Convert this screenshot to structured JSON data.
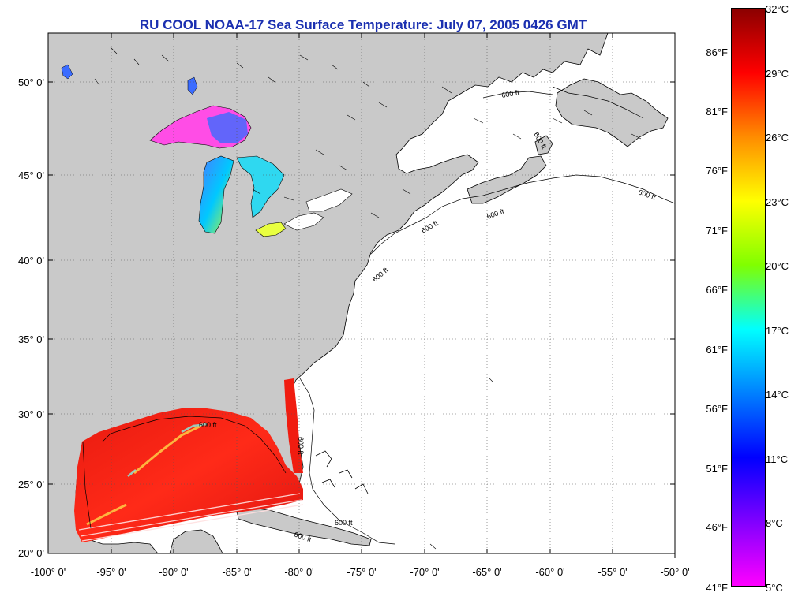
{
  "title": "RU COOL  NOAA-17  Sea Surface Temperature:  July 07, 2005 0426 GMT",
  "latitude_labels": [
    "50° 0'",
    "45° 0'",
    "40° 0'",
    "35° 0'",
    "30° 0'",
    "25° 0'",
    "20° 0'"
  ],
  "longitude_labels": [
    "-100° 0'",
    "-95° 0'",
    "-90° 0'",
    "-85° 0'",
    "-80° 0'",
    "-75° 0'",
    "-70° 0'",
    "-65° 0'",
    "-60° 0'",
    "-55° 0'",
    "-50° 0'"
  ],
  "contour_label": "600 ft",
  "colorbar": {
    "celsius_ticks": [
      "32°C",
      "29°C",
      "26°C",
      "23°C",
      "20°C",
      "17°C",
      "14°C",
      "11°C",
      "8°C",
      "5°C"
    ],
    "fahrenheit_ticks": [
      "86°F",
      "81°F",
      "76°F",
      "71°F",
      "66°F",
      "61°F",
      "56°F",
      "51°F",
      "46°F",
      "41°F"
    ],
    "gradient_colors": [
      "#8b0000",
      "#ff0000",
      "#ff8c00",
      "#ffff00",
      "#80ff00",
      "#00ffff",
      "#0080ff",
      "#0000ff",
      "#8000ff",
      "#ff00ff"
    ]
  },
  "colors": {
    "land": "#c9c9c9",
    "ocean_no_data": "#ffffff",
    "title": "#1a2fb0"
  }
}
